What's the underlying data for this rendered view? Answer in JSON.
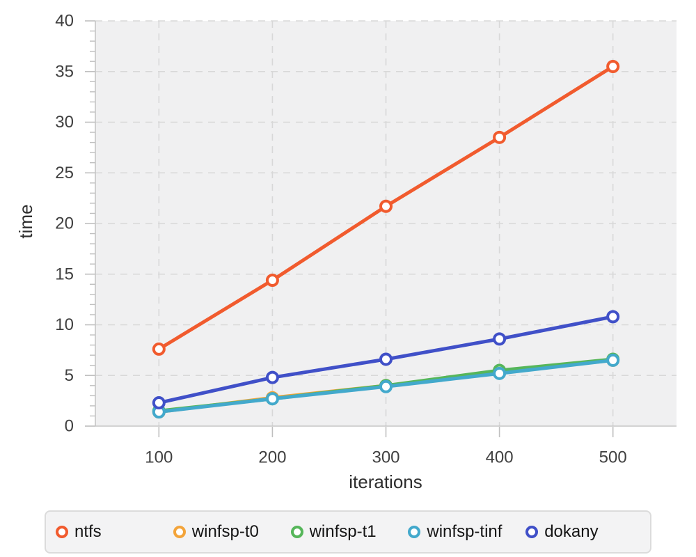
{
  "chart_data": {
    "type": "line",
    "title": "",
    "xlabel": "iterations",
    "ylabel": "time",
    "x": [
      100,
      200,
      300,
      400,
      500
    ],
    "xlim": [
      44,
      556
    ],
    "ylim": [
      0,
      40
    ],
    "y_major_ticks": [
      0,
      5,
      10,
      15,
      20,
      25,
      30,
      35,
      40
    ],
    "y_minor_tick_step": 1,
    "grid": "dashed-both",
    "legend_position": "bottom",
    "plot_bg_color": "#f0f0f1",
    "grid_color": "#d8d8d8",
    "axis_color": "#c6c6c6",
    "tick_color": "#bfbfbf",
    "series": [
      {
        "name": "ntfs",
        "color": "#f15b2e",
        "values": [
          7.6,
          14.4,
          21.7,
          28.5,
          35.5
        ]
      },
      {
        "name": "winfsp-t0",
        "color": "#f3a43a",
        "values": [
          1.4,
          2.8,
          4.0,
          5.3,
          6.5
        ]
      },
      {
        "name": "winfsp-t1",
        "color": "#56b65a",
        "values": [
          1.5,
          2.7,
          4.0,
          5.5,
          6.6
        ]
      },
      {
        "name": "winfsp-tinf",
        "color": "#43a9cc",
        "values": [
          1.4,
          2.7,
          3.9,
          5.2,
          6.5
        ]
      },
      {
        "name": "dokany",
        "color": "#4050c8",
        "values": [
          2.3,
          4.8,
          6.6,
          8.6,
          10.8
        ]
      }
    ]
  },
  "legend": {
    "items": [
      "ntfs",
      "winfsp-t0",
      "winfsp-t1",
      "winfsp-tinf",
      "dokany"
    ]
  }
}
